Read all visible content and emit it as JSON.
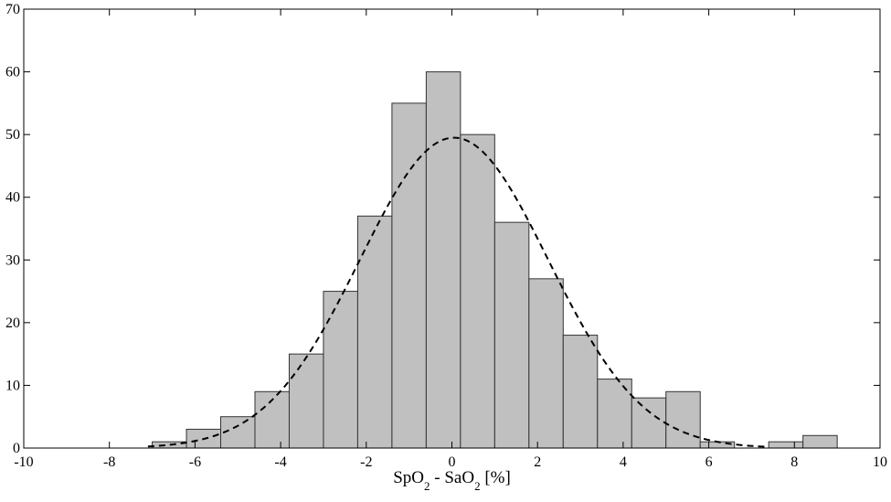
{
  "chart_data": {
    "type": "bar",
    "xlabel": {
      "parts": [
        "SpO",
        "2",
        " - SaO",
        "2",
        " [%]"
      ]
    },
    "ylabel": "",
    "xlim": [
      -10,
      10
    ],
    "ylim": [
      0,
      70
    ],
    "xticks": [
      -10,
      -8,
      -6,
      -4,
      -2,
      0,
      2,
      4,
      6,
      8,
      10
    ],
    "yticks": [
      0,
      10,
      20,
      30,
      40,
      50,
      60,
      70
    ],
    "grid": false,
    "bin_edges": [
      -7.0,
      -6.2,
      -5.4,
      -4.6,
      -3.8,
      -3.0,
      -2.2,
      -1.4,
      -0.6,
      0.2,
      1.0,
      1.8,
      2.6,
      3.4,
      4.2,
      5.0,
      5.8,
      6.6,
      7.4,
      8.2,
      9.0
    ],
    "counts": [
      1,
      3,
      5,
      9,
      15,
      25,
      37,
      55,
      60,
      50,
      36,
      27,
      18,
      11,
      8,
      9,
      1,
      0,
      1,
      2
    ],
    "bar_color": "#c0c0c0",
    "bar_edge_color": "#333333",
    "normal_fit": {
      "style": "dashed",
      "color": "#000000",
      "mean": 0.05,
      "sd": 2.2,
      "peak": 49.5,
      "x_range": [
        -7.1,
        7.4
      ]
    }
  }
}
